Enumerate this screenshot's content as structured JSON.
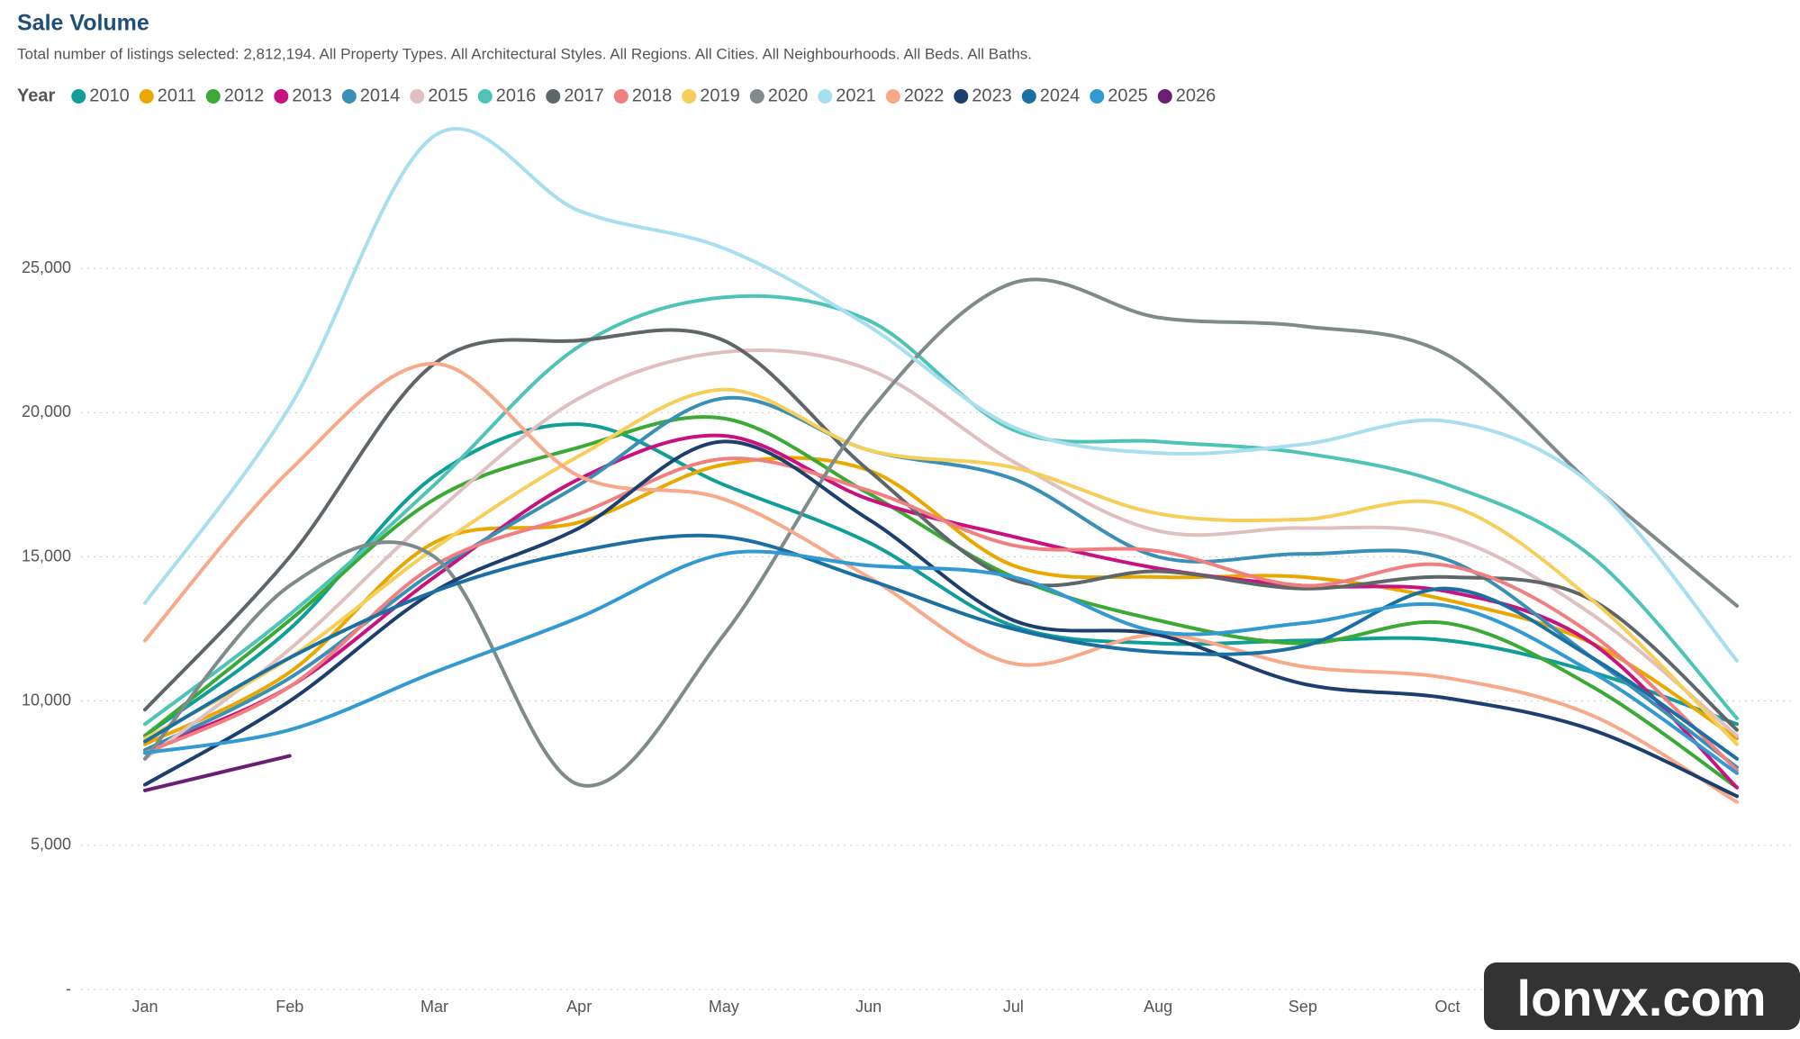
{
  "chart_data": {
    "type": "line",
    "title": "Sale Volume",
    "subtitle": "Total number of listings selected: 2,812,194. All Property Types. All Architectural Styles. All Regions. All Cities. All Neighbourhoods. All Beds. All Baths.",
    "legend_title": "Year",
    "watermark": "lonvx.com",
    "categories": [
      "Jan",
      "Feb",
      "Mar",
      "Apr",
      "May",
      "Jun",
      "Jul",
      "Aug",
      "Sep",
      "Oct",
      null,
      null
    ],
    "ylim": [
      0,
      30000
    ],
    "yticks": [
      {
        "value": 0,
        "label": "-"
      },
      {
        "value": 5000,
        "label": "5,000"
      },
      {
        "value": 10000,
        "label": "10,000"
      },
      {
        "value": 15000,
        "label": "15,000"
      },
      {
        "value": 20000,
        "label": "20,000"
      },
      {
        "value": 25000,
        "label": "25,000"
      }
    ],
    "grid": true,
    "series": [
      {
        "name": "2010",
        "color": "#0f9e98",
        "values": [
          8800,
          12500,
          17800,
          19600,
          17500,
          15500,
          12600,
          12000,
          12100,
          12100,
          11000,
          9200
        ]
      },
      {
        "name": "2011",
        "color": "#e8a800",
        "values": [
          8500,
          11000,
          15500,
          16200,
          18200,
          18000,
          14700,
          14300,
          14300,
          13500,
          12000,
          8700
        ]
      },
      {
        "name": "2012",
        "color": "#3aaa35",
        "values": [
          8800,
          12800,
          17000,
          18800,
          19800,
          17200,
          14300,
          12800,
          12000,
          12700,
          10500,
          7000
        ]
      },
      {
        "name": "2013",
        "color": "#c8127f",
        "values": [
          8300,
          10500,
          14300,
          17700,
          19200,
          17000,
          15700,
          14600,
          14000,
          13800,
          12000,
          7000
        ]
      },
      {
        "name": "2014",
        "color": "#3a8fb5",
        "values": [
          8300,
          10800,
          14500,
          17500,
          20500,
          18700,
          17700,
          15000,
          15100,
          14900,
          11500,
          7700
        ]
      },
      {
        "name": "2015",
        "color": "#e0bfc0",
        "values": [
          8000,
          11800,
          16500,
          20500,
          22100,
          21500,
          18300,
          15900,
          16000,
          15700,
          13000,
          8800
        ]
      },
      {
        "name": "2016",
        "color": "#4dc4b5",
        "values": [
          9200,
          13000,
          17500,
          22300,
          24000,
          23200,
          19400,
          19000,
          18600,
          17500,
          15000,
          9400
        ]
      },
      {
        "name": "2017",
        "color": "#5f6669",
        "values": [
          9700,
          15000,
          21700,
          22500,
          22500,
          18000,
          14200,
          14500,
          13900,
          14300,
          13500,
          9000
        ]
      },
      {
        "name": "2018",
        "color": "#f08080",
        "values": [
          8200,
          10500,
          14700,
          16500,
          18400,
          17300,
          15400,
          15200,
          14000,
          14700,
          12300,
          7600
        ]
      },
      {
        "name": "2019",
        "color": "#f5cf5a",
        "values": [
          8700,
          11500,
          15300,
          18500,
          20800,
          18700,
          18100,
          16500,
          16300,
          16800,
          13500,
          8500
        ]
      },
      {
        "name": "2020",
        "color": "#7f8a8a",
        "values": [
          8000,
          14000,
          15000,
          7100,
          12300,
          20000,
          24500,
          23300,
          23000,
          22000,
          17500,
          13300
        ]
      },
      {
        "name": "2021",
        "color": "#a8dff0",
        "values": [
          13400,
          20200,
          29600,
          27000,
          25700,
          23000,
          19500,
          18600,
          18900,
          19700,
          17500,
          11400
        ]
      },
      {
        "name": "2022",
        "color": "#f7a98a",
        "values": [
          12100,
          18000,
          21700,
          17800,
          17000,
          14300,
          11300,
          12300,
          11200,
          10800,
          9500,
          6500
        ]
      },
      {
        "name": "2023",
        "color": "#1c3f6e",
        "values": [
          7100,
          10000,
          13800,
          16000,
          19000,
          16300,
          12800,
          12300,
          10600,
          10100,
          9000,
          6700
        ]
      },
      {
        "name": "2024",
        "color": "#1a6fa3",
        "values": [
          8600,
          11500,
          13800,
          15200,
          15700,
          14200,
          12500,
          11700,
          11900,
          13900,
          11500,
          8000
        ]
      },
      {
        "name": "2025",
        "color": "#3399d1",
        "values": [
          8200,
          9000,
          11000,
          12900,
          15100,
          14700,
          14300,
          12400,
          12700,
          13300,
          11000,
          7500
        ]
      },
      {
        "name": "2026",
        "color": "#6b1f73",
        "values": [
          6900,
          8100,
          null,
          null,
          null,
          null,
          null,
          null,
          null,
          null,
          null,
          null
        ]
      }
    ]
  }
}
